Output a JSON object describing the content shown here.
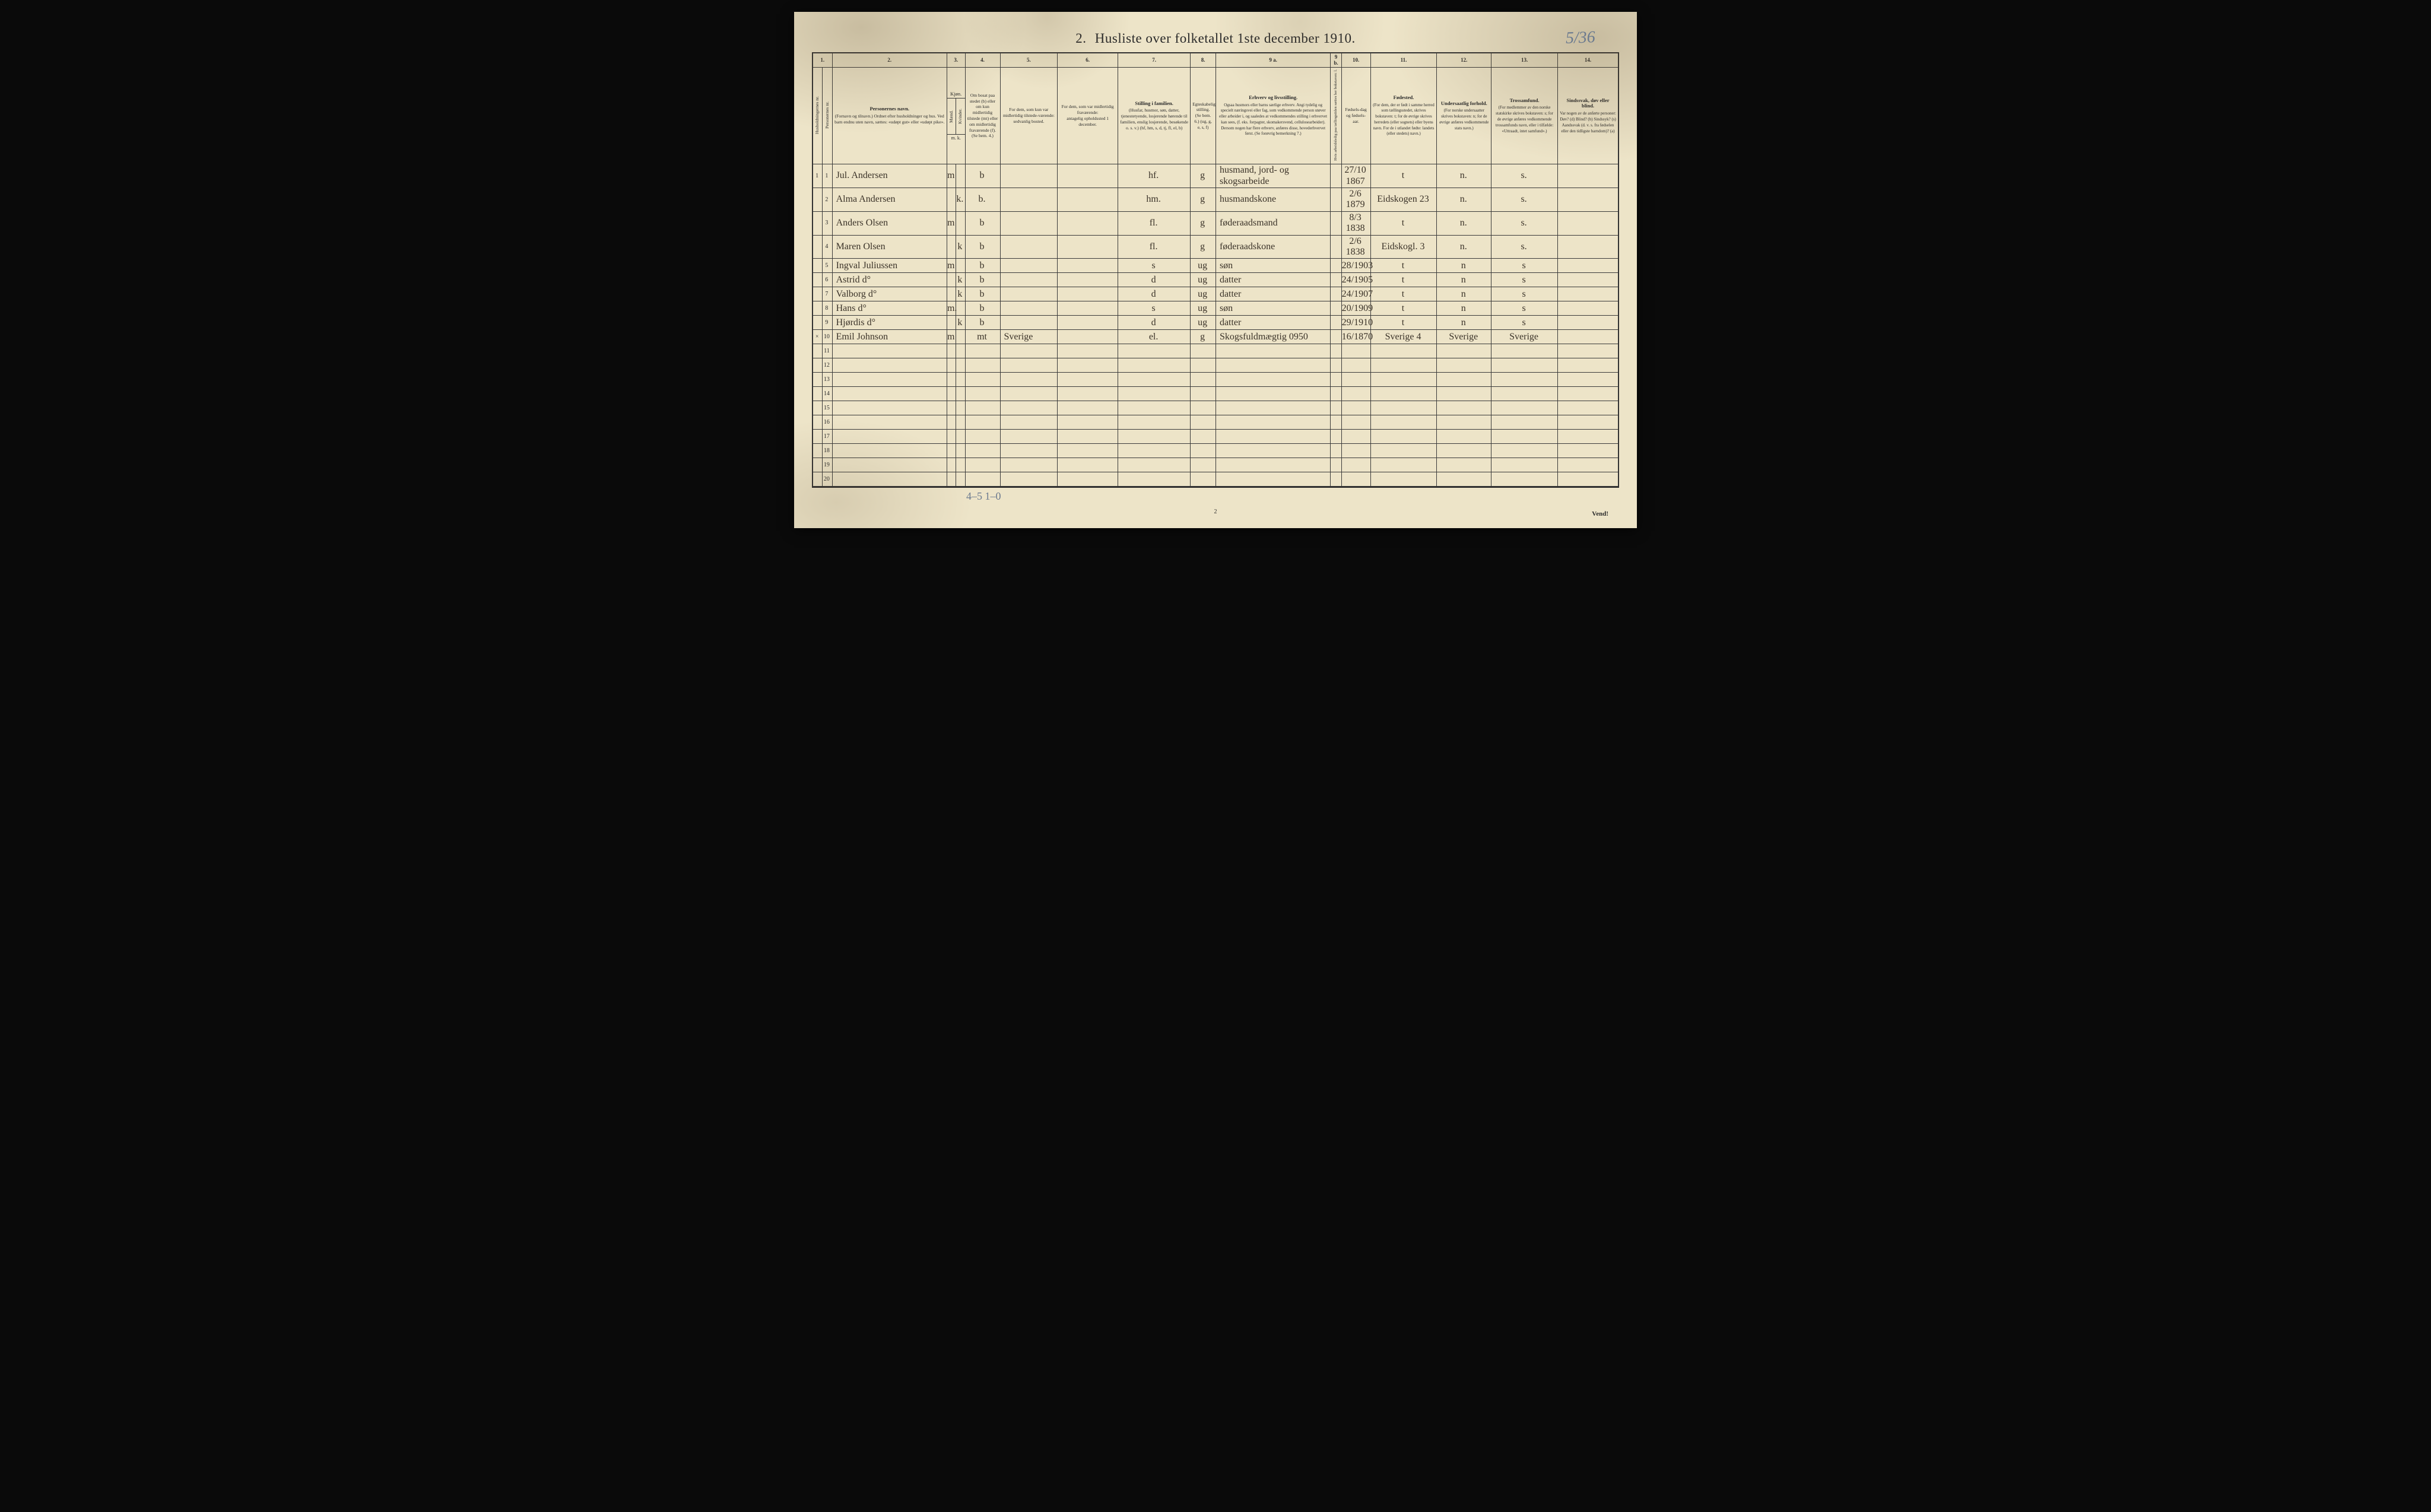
{
  "document": {
    "section_number": "2.",
    "title": "Husliste over folketallet 1ste december 1910.",
    "page_annotation_top": "5/36",
    "footer_annotation": "4–5   1–0",
    "footer_page_number": "2",
    "vend_label": "Vend!",
    "colors": {
      "paper": "#ede4c8",
      "ink": "#2a2a2a",
      "handwriting": "#3a3228",
      "pencil": "#6b7a8f",
      "background": "#0a0a0a"
    }
  },
  "columns": {
    "nums": [
      "1.",
      "2.",
      "3.",
      "4.",
      "5.",
      "6.",
      "7.",
      "8.",
      "9 a.",
      "9 b.",
      "10.",
      "11.",
      "12.",
      "13.",
      "14."
    ],
    "headers": {
      "c1": "Husholdningernes nr.",
      "c2": "Personernes nr.",
      "c3_title": "Personernes navn.",
      "c3_sub": "(Fornavn og tilnavn.) Ordnet efter husholdninger og hus. Ved barn endnu uten navn, sættes: «udøpt gut» eller «udøpt pike».",
      "c4_title": "Kjøn.",
      "c4_m": "Mænd.",
      "c4_k": "Kvinder.",
      "c5": "m.  k.",
      "c6": "Om bosat paa stedet (b) eller om kun midlertidig tilstede (mt) eller om midlertidig fraværende (f). (Se bem. 4.)",
      "c7_title": "For dem, som kun var midlertidig tilstede-værende:",
      "c7_sub": "sedvanlig bosted.",
      "c8_title": "For dem, som var midlertidig fraværende:",
      "c8_sub": "antagelig opholdssted 1 december.",
      "c9_title": "Stilling i familien.",
      "c9_sub": "(Husfar, husmor, søn, datter, tjenestetyende, losjerende hørende til familien, enslig losjerende, besøkende o. s. v.) (hf, hm, s, d, tj, fl, el, b)",
      "c10_title": "Egteskabelig stilling.",
      "c10_sub": "(Se bem. 6.) (ug, g, e, s, f)",
      "c11_title": "Erhverv og livsstilling.",
      "c11_sub": "Ogsaa husmors eller barns særlige erhverv. Angi tydelig og specielt næringsvei eller fag, som vedkommende person utøver eller arbeider i, og saaledes at vedkommendes stilling i erhvervet kan sees, (f. eks. forpagter, skomakersvend, cellulosearbeider). Dersom nogen har flere erhverv, anføres disse, hovederhvervet først. (Se forøvrig bemerkning 7.)",
      "c12": "Hvis arbeidsledig paa tællingstiden sættes her bokstaven: l.",
      "c13": "Fødsels-dag og fødsels-aar.",
      "c14_title": "Fødested.",
      "c14_sub": "(For dem, der er født i samme herred som tællingsstedet, skrives bokstaven: t; for de øvrige skrives herredets (eller sognets) eller byens navn. For de i utlandet fødte: landets (eller stedets) navn.)",
      "c15_title": "Undersaatlig forhold.",
      "c15_sub": "(For norske undersaatter skrives bokstaven: n; for de øvrige anføres vedkommende stats navn.)",
      "c16_title": "Trossamfund.",
      "c16_sub": "(For medlemmer av den norske statskirke skrives bokstaven: s; for de øvrige anføres vedkommende trossamfunds navn, eller i tilfælde: «Uttraadt, intet samfund».)",
      "c17_title": "Sindssvak, døv eller blind.",
      "c17_sub": "Var nogen av de anførte personer: Døv? (d) Blind? (b) Sindssyk? (s) Aandssvak (d. v. s. fra fødselen eller den tidligste barndom)? (a)"
    }
  },
  "rows": [
    {
      "hh": "1",
      "pn": "1",
      "name": "Jul. Andersen",
      "sex_m": "m",
      "sex_k": "",
      "res": "b",
      "c7": "",
      "c8": "",
      "fam": "hf.",
      "mar": "g",
      "occ": "husmand, jord- og skogsarbeide",
      "c12": "",
      "birth": "27/10 1867",
      "birthplace": "t",
      "nat": "n.",
      "rel": "s.",
      "dis": ""
    },
    {
      "hh": "",
      "pn": "2",
      "name": "Alma Andersen",
      "sex_m": "",
      "sex_k": "k.",
      "res": "b.",
      "c7": "",
      "c8": "",
      "fam": "hm.",
      "mar": "g",
      "occ": "husmandskone",
      "c12": "",
      "birth": "2/6 1879",
      "birthplace": "Eidskogen 23",
      "nat": "n.",
      "rel": "s.",
      "dis": ""
    },
    {
      "hh": "",
      "pn": "3",
      "name": "Anders Olsen",
      "sex_m": "m",
      "sex_k": "",
      "res": "b",
      "c7": "",
      "c8": "",
      "fam": "fl.",
      "mar": "g",
      "occ": "føderaadsmand",
      "c12": "",
      "birth": "8/3 1838",
      "birthplace": "t",
      "nat": "n.",
      "rel": "s.",
      "dis": ""
    },
    {
      "hh": "",
      "pn": "4",
      "name": "Maren Olsen",
      "sex_m": "",
      "sex_k": "k",
      "res": "b",
      "c7": "",
      "c8": "",
      "fam": "fl.",
      "mar": "g",
      "occ": "føderaadskone",
      "c12": "",
      "birth": "2/6 1838",
      "birthplace": "Eidskogl. 3",
      "nat": "n.",
      "rel": "s.",
      "dis": ""
    },
    {
      "hh": "",
      "pn": "5",
      "name": "Ingval Juliussen",
      "sex_m": "m",
      "sex_k": "",
      "res": "b",
      "c7": "",
      "c8": "",
      "fam": "s",
      "mar": "ug",
      "occ": "søn",
      "c12": "",
      "birth": "28/1903",
      "birthplace": "t",
      "nat": "n",
      "rel": "s",
      "dis": ""
    },
    {
      "hh": "",
      "pn": "6",
      "name": "Astrid  d°",
      "sex_m": "",
      "sex_k": "k",
      "res": "b",
      "c7": "",
      "c8": "",
      "fam": "d",
      "mar": "ug",
      "occ": "datter",
      "c12": "",
      "birth": "24/1905",
      "birthplace": "t",
      "nat": "n",
      "rel": "s",
      "dis": ""
    },
    {
      "hh": "",
      "pn": "7",
      "name": "Valborg  d°",
      "sex_m": "",
      "sex_k": "k",
      "res": "b",
      "c7": "",
      "c8": "",
      "fam": "d",
      "mar": "ug",
      "occ": "datter",
      "c12": "",
      "birth": "24/1907",
      "birthplace": "t",
      "nat": "n",
      "rel": "s",
      "dis": ""
    },
    {
      "hh": "",
      "pn": "8",
      "name": "Hans  d°",
      "sex_m": "m.",
      "sex_k": "",
      "res": "b",
      "c7": "",
      "c8": "",
      "fam": "s",
      "mar": "ug",
      "occ": "søn",
      "c12": "",
      "birth": "20/1909",
      "birthplace": "t",
      "nat": "n",
      "rel": "s",
      "dis": ""
    },
    {
      "hh": "",
      "pn": "9",
      "name": "Hjørdis  d°",
      "sex_m": "",
      "sex_k": "k",
      "res": "b",
      "c7": "",
      "c8": "",
      "fam": "d",
      "mar": "ug",
      "occ": "datter",
      "c12": "",
      "birth": "29/1910",
      "birthplace": "t",
      "nat": "n",
      "rel": "s",
      "dis": ""
    },
    {
      "hh": "×",
      "pn": "10",
      "name": "Emil Johnson",
      "sex_m": "m",
      "sex_k": "",
      "res": "mt",
      "c7": "Sverige",
      "c8": "",
      "fam": "el.",
      "mar": "g",
      "occ": "Skogsfuldmægtig 0950",
      "c12": "",
      "birth": "16/1870",
      "birthplace": "Sverige 4",
      "nat": "Sverige",
      "rel": "Sverige",
      "dis": ""
    }
  ],
  "empty_row_numbers": [
    "11",
    "12",
    "13",
    "14",
    "15",
    "16",
    "17",
    "18",
    "19",
    "20"
  ]
}
